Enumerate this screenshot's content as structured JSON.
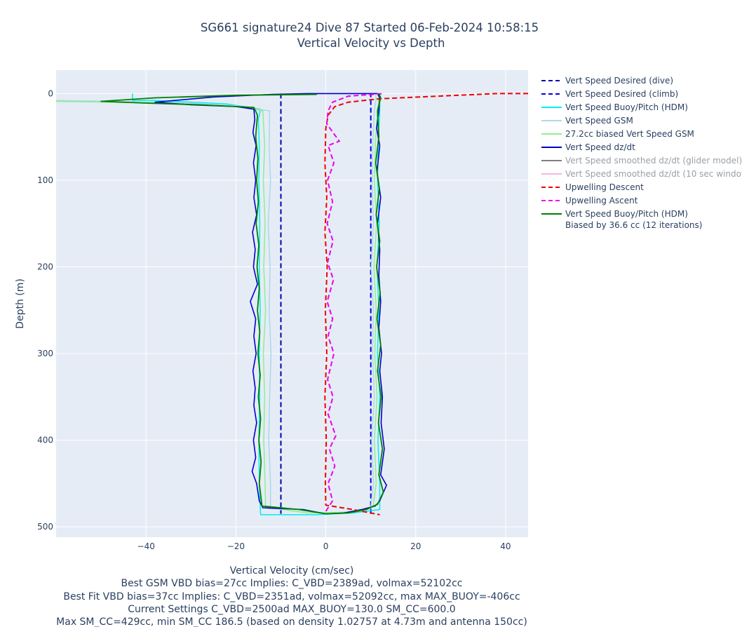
{
  "title": {
    "line1": "SG661 signature24 Dive 87 Started 06-Feb-2024 10:58:15",
    "line2": "Vertical Velocity vs Depth"
  },
  "footer": [
    "Vertical Velocity (cm/sec)",
    "Best GSM VBD bias=27cc Implies: C_VBD=2389ad, volmax=52102cc",
    "Best Fit VBD bias=37cc Implies: C_VBD=2351ad, volmax=52092cc, max MAX_BUOY=-406cc",
    "Current Settings C_VBD=2500ad MAX_BUOY=130.0 SM_CC=600.0",
    "Max SM_CC=429cc, min SM_CC 186.5 (based on density 1.02757 at 4.73m and antenna 150cc)"
  ],
  "chart_data": {
    "type": "line",
    "xlabel": "Vertical Velocity (cm/sec)",
    "ylabel": "Depth (m)",
    "xlim": [
      -60,
      45
    ],
    "ylim": [
      512,
      -27
    ],
    "y_reversed": true,
    "grid": true,
    "legend_position": "right",
    "x_ticks": [
      {
        "value": -40,
        "label": "−40"
      },
      {
        "value": -20,
        "label": "−20"
      },
      {
        "value": 0,
        "label": "0"
      },
      {
        "value": 20,
        "label": "20"
      },
      {
        "value": 40,
        "label": "40"
      }
    ],
    "y_ticks": [
      {
        "value": 0,
        "label": "0"
      },
      {
        "value": 100,
        "label": "100"
      },
      {
        "value": 200,
        "label": "200"
      },
      {
        "value": 300,
        "label": "300"
      },
      {
        "value": 400,
        "label": "400"
      },
      {
        "value": 500,
        "label": "500"
      }
    ],
    "series": [
      {
        "name": "Vert Speed Desired (dive)",
        "color": "#0000b0",
        "dash": "dash",
        "width": 2,
        "dim": false,
        "points": [
          [
            -10,
            0
          ],
          [
            -10,
            485
          ]
        ]
      },
      {
        "name": "Vert Speed Desired (climb)",
        "color": "#0000e0",
        "dash": "dash",
        "width": 2,
        "dim": false,
        "points": [
          [
            10,
            485
          ],
          [
            10,
            0
          ]
        ]
      },
      {
        "name": "Vert Speed Buoy/Pitch (HDM)",
        "color": "#00eeee",
        "dash": "solid",
        "width": 1.5,
        "dim": false,
        "points": [
          [
            -43,
            0
          ],
          [
            -43,
            8
          ],
          [
            -38,
            8
          ],
          [
            -22,
            12
          ],
          [
            -14.5,
            18
          ],
          [
            -15,
            30
          ],
          [
            -14.8,
            60
          ],
          [
            -14.9,
            100
          ],
          [
            -14.7,
            150
          ],
          [
            -14.8,
            200
          ],
          [
            -14.6,
            250
          ],
          [
            -14.8,
            300
          ],
          [
            -14.7,
            350
          ],
          [
            -14.9,
            400
          ],
          [
            -14.8,
            450
          ],
          [
            -14.5,
            486
          ],
          [
            -2,
            486
          ],
          [
            6,
            484
          ],
          [
            12,
            480
          ],
          [
            12,
            450
          ],
          [
            11.6,
            400
          ],
          [
            12,
            350
          ],
          [
            11.5,
            300
          ],
          [
            11.8,
            250
          ],
          [
            11.4,
            200
          ],
          [
            11.9,
            150
          ],
          [
            11.5,
            100
          ],
          [
            11.7,
            50
          ],
          [
            12,
            20
          ],
          [
            12,
            5
          ],
          [
            12,
            0
          ]
        ]
      },
      {
        "name": "Vert Speed GSM",
        "color": "#add8e6",
        "dash": "solid",
        "width": 1.5,
        "dim": false,
        "points": [
          [
            -60,
            8
          ],
          [
            -35,
            10
          ],
          [
            -20,
            14
          ],
          [
            -12.5,
            20
          ],
          [
            -12.6,
            60
          ],
          [
            -12.3,
            100
          ],
          [
            -12.8,
            150
          ],
          [
            -12.4,
            200
          ],
          [
            -12.6,
            250
          ],
          [
            -12.2,
            300
          ],
          [
            -12.5,
            350
          ],
          [
            -12.7,
            400
          ],
          [
            -12.3,
            450
          ],
          [
            -12.3,
            478
          ],
          [
            -4,
            484
          ],
          [
            6,
            483
          ],
          [
            10,
            478
          ],
          [
            10.6,
            450
          ],
          [
            10.2,
            400
          ],
          [
            10.8,
            350
          ],
          [
            10.4,
            300
          ],
          [
            10.6,
            250
          ],
          [
            10.1,
            200
          ],
          [
            10.6,
            150
          ],
          [
            10.3,
            100
          ],
          [
            10.5,
            50
          ],
          [
            10.8,
            20
          ],
          [
            11.2,
            5
          ],
          [
            11,
            0
          ]
        ]
      },
      {
        "name": "27.2cc biased Vert Speed GSM",
        "color": "#90ee90",
        "dash": "solid",
        "width": 1.5,
        "dim": false,
        "points": [
          [
            -60,
            9
          ],
          [
            -36,
            11
          ],
          [
            -20,
            15
          ],
          [
            -14,
            20
          ],
          [
            -13.6,
            60
          ],
          [
            -13.9,
            100
          ],
          [
            -13.5,
            150
          ],
          [
            -13.8,
            200
          ],
          [
            -13.4,
            250
          ],
          [
            -13.9,
            300
          ],
          [
            -13.6,
            350
          ],
          [
            -13.8,
            400
          ],
          [
            -13.5,
            450
          ],
          [
            -13.4,
            477
          ],
          [
            -4,
            484
          ],
          [
            6,
            483
          ],
          [
            10.5,
            477
          ],
          [
            11.2,
            450
          ],
          [
            10.8,
            400
          ],
          [
            11.4,
            350
          ],
          [
            10.9,
            300
          ],
          [
            11.2,
            250
          ],
          [
            10.7,
            200
          ],
          [
            11.3,
            150
          ],
          [
            10.8,
            100
          ],
          [
            11.1,
            50
          ],
          [
            11.5,
            20
          ],
          [
            11.8,
            5
          ],
          [
            11.6,
            0
          ]
        ]
      },
      {
        "name": "Vert Speed dz/dt",
        "color": "#0000cd",
        "dash": "solid",
        "width": 1.6,
        "dim": false,
        "points": [
          [
            -4,
            0
          ],
          [
            -12,
            1
          ],
          [
            -25,
            4
          ],
          [
            -38,
            10
          ],
          [
            -30,
            13
          ],
          [
            -20,
            15
          ],
          [
            -16,
            18
          ],
          [
            -15.8,
            30
          ],
          [
            -16.2,
            45
          ],
          [
            -15.5,
            60
          ],
          [
            -16.1,
            80
          ],
          [
            -15.6,
            100
          ],
          [
            -16,
            120
          ],
          [
            -15.4,
            140
          ],
          [
            -16.3,
            160
          ],
          [
            -15.7,
            180
          ],
          [
            -16.1,
            200
          ],
          [
            -15.2,
            220
          ],
          [
            -16.8,
            240
          ],
          [
            -15.6,
            260
          ],
          [
            -16,
            280
          ],
          [
            -15.5,
            300
          ],
          [
            -16.2,
            320
          ],
          [
            -15.7,
            340
          ],
          [
            -16,
            360
          ],
          [
            -15.4,
            380
          ],
          [
            -16.1,
            400
          ],
          [
            -15.6,
            420
          ],
          [
            -16.4,
            436
          ],
          [
            -15.4,
            450
          ],
          [
            -14.8,
            470
          ],
          [
            -14,
            478
          ],
          [
            -5,
            480
          ],
          [
            0,
            485
          ],
          [
            4,
            484
          ],
          [
            8,
            480
          ],
          [
            11,
            476
          ],
          [
            12,
            470
          ],
          [
            13.5,
            452
          ],
          [
            12.2,
            440
          ],
          [
            13,
            410
          ],
          [
            12.3,
            380
          ],
          [
            12.6,
            350
          ],
          [
            12,
            320
          ],
          [
            12.4,
            300
          ],
          [
            11.8,
            270
          ],
          [
            12.2,
            240
          ],
          [
            11.8,
            210
          ],
          [
            12,
            180
          ],
          [
            11.5,
            150
          ],
          [
            12.2,
            120
          ],
          [
            11.4,
            90
          ],
          [
            12,
            60
          ],
          [
            11.3,
            40
          ],
          [
            11.8,
            20
          ],
          [
            12,
            5
          ],
          [
            11.5,
            0
          ],
          [
            0,
            0
          ],
          [
            -4,
            0
          ]
        ]
      },
      {
        "name": "Vert Speed smoothed dz/dt (glider model)",
        "color": "#7f7f7f",
        "dash": "solid",
        "width": 1.5,
        "dim": true,
        "points": []
      },
      {
        "name": "Vert Speed smoothed dz/dt (10 sec window)",
        "color": "#f4b6e2",
        "dash": "solid",
        "width": 1.5,
        "dim": true,
        "points": []
      },
      {
        "name": "Upwelling Descent",
        "color": "#ee0000",
        "dash": "dash",
        "width": 2,
        "dim": false,
        "points": [
          [
            45,
            0
          ],
          [
            38,
            0
          ],
          [
            25,
            3
          ],
          [
            12,
            6
          ],
          [
            5,
            10
          ],
          [
            2,
            15
          ],
          [
            0.5,
            25
          ],
          [
            0,
            40
          ],
          [
            -0.2,
            80
          ],
          [
            0.2,
            120
          ],
          [
            -0.2,
            160
          ],
          [
            0.3,
            200
          ],
          [
            -0.1,
            250
          ],
          [
            0.2,
            300
          ],
          [
            -0.2,
            350
          ],
          [
            0.1,
            400
          ],
          [
            -0.1,
            450
          ],
          [
            0,
            475
          ],
          [
            6,
            480
          ],
          [
            12,
            486
          ]
        ]
      },
      {
        "name": "Upwelling Ascent",
        "color": "#ee00ee",
        "dash": "dash",
        "width": 2,
        "dim": false,
        "points": [
          [
            0,
            482
          ],
          [
            1.5,
            470
          ],
          [
            0.5,
            450
          ],
          [
            2,
            430
          ],
          [
            0.8,
            410
          ],
          [
            2.2,
            395
          ],
          [
            0.5,
            370
          ],
          [
            1.6,
            350
          ],
          [
            0.4,
            330
          ],
          [
            1.8,
            300
          ],
          [
            0.5,
            280
          ],
          [
            1.5,
            260
          ],
          [
            0.3,
            240
          ],
          [
            1.7,
            215
          ],
          [
            0.4,
            195
          ],
          [
            1.6,
            170
          ],
          [
            0.3,
            150
          ],
          [
            1.5,
            125
          ],
          [
            0.4,
            100
          ],
          [
            1.8,
            80
          ],
          [
            0.5,
            60
          ],
          [
            3,
            55
          ],
          [
            0.2,
            35
          ],
          [
            0.5,
            20
          ],
          [
            1.5,
            10
          ],
          [
            5,
            3
          ],
          [
            13,
            0
          ]
        ]
      },
      {
        "name": "Vert Speed Buoy/Pitch (HDM)",
        "name2": "Biased by 36.6 cc (12 iterations)",
        "color": "#008000",
        "dash": "solid",
        "width": 1.8,
        "dim": false,
        "points": [
          [
            -2,
            1
          ],
          [
            -20,
            2
          ],
          [
            -38,
            5
          ],
          [
            -50,
            9
          ],
          [
            -40,
            11
          ],
          [
            -28,
            13
          ],
          [
            -16,
            16
          ],
          [
            -15.2,
            25
          ],
          [
            -15.6,
            50
          ],
          [
            -15.1,
            75
          ],
          [
            -15.4,
            100
          ],
          [
            -15,
            125
          ],
          [
            -15.5,
            150
          ],
          [
            -14.9,
            175
          ],
          [
            -15.3,
            200
          ],
          [
            -14.8,
            225
          ],
          [
            -15.2,
            250
          ],
          [
            -14.7,
            275
          ],
          [
            -15.1,
            300
          ],
          [
            -14.6,
            325
          ],
          [
            -15,
            350
          ],
          [
            -14.5,
            375
          ],
          [
            -14.9,
            400
          ],
          [
            -14.4,
            425
          ],
          [
            -14.8,
            450
          ],
          [
            -14.2,
            476
          ],
          [
            -6,
            480
          ],
          [
            0,
            485
          ],
          [
            5,
            484
          ],
          [
            9,
            480
          ],
          [
            11.5,
            474
          ],
          [
            12.8,
            460
          ],
          [
            11.8,
            440
          ],
          [
            12.6,
            410
          ],
          [
            11.7,
            380
          ],
          [
            12.3,
            350
          ],
          [
            11.5,
            320
          ],
          [
            12.2,
            290
          ],
          [
            11.4,
            260
          ],
          [
            12.1,
            230
          ],
          [
            11.3,
            200
          ],
          [
            12,
            170
          ],
          [
            11.2,
            140
          ],
          [
            11.9,
            110
          ],
          [
            11.1,
            80
          ],
          [
            11.8,
            50
          ],
          [
            11.5,
            20
          ],
          [
            12.2,
            5
          ],
          [
            11.8,
            0
          ]
        ]
      }
    ]
  }
}
